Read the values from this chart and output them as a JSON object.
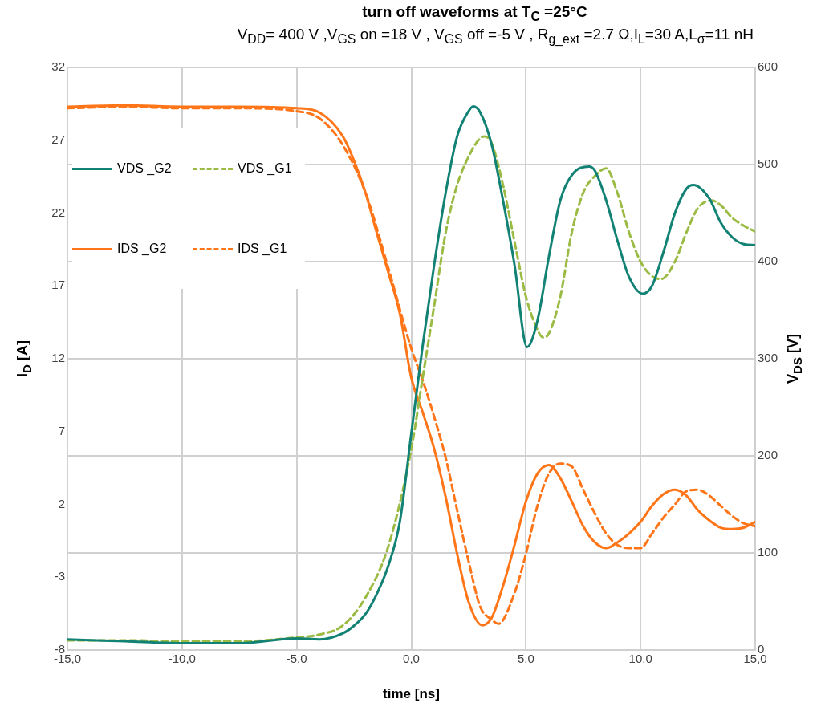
{
  "chart_data": {
    "type": "line",
    "title": "turn off waveforms at T$_{C}$ =25°C",
    "subtitle": "V$_{DD}$= 400 V ,V$_{GS}$ on =18 V , V$_{GS}$ off =-5 V , R$_{g_ext}$ =2.7 Ω,I$_{L}$=30 A,L$_{σ}$=11 nH",
    "xlabel": "time [ns]",
    "ylabel": "I$_{D}$ [A]",
    "y2label": "V$_{DS}$ [V]",
    "xlim": [
      -15,
      15
    ],
    "xticks": [
      {
        "value": -15,
        "label": "-15,0"
      },
      {
        "value": -10,
        "label": "-10,0"
      },
      {
        "value": -5,
        "label": "-5,0"
      },
      {
        "value": 0,
        "label": "0,0"
      },
      {
        "value": 5,
        "label": "5,0"
      },
      {
        "value": 10,
        "label": "10,0"
      },
      {
        "value": 15,
        "label": "15,0"
      }
    ],
    "ylim": [
      -8,
      32
    ],
    "yticks": [
      -8,
      -3,
      2,
      7,
      12,
      17,
      22,
      27,
      32
    ],
    "y2lim": [
      0,
      600
    ],
    "y2ticks": [
      0,
      100,
      200,
      300,
      400,
      500,
      600
    ],
    "grid": true,
    "legend": "top left",
    "marker": "none",
    "series": [
      {
        "name": "VDS _G2",
        "color": "#128274",
        "axis": "y2",
        "line_style": "solid",
        "x": [
          -15,
          -12.5,
          -10,
          -7.5,
          -5,
          -4,
          -3,
          -2.5,
          -2,
          -1.5,
          -1,
          -0.5,
          0,
          0.5,
          1,
          1.5,
          2,
          2.5,
          2.7,
          3,
          3.5,
          4,
          4.5,
          5.05,
          5.5,
          6,
          6.5,
          7,
          7.75,
          8,
          8.5,
          9,
          9.5,
          10.1,
          10.5,
          11,
          11.5,
          12,
          12.3,
          13,
          13.5,
          14,
          14.5,
          15
        ],
        "values": [
          11,
          9,
          7,
          7,
          12,
          11,
          17,
          25,
          37,
          58,
          87,
          132,
          223,
          314,
          397,
          471,
          529,
          555,
          560,
          554,
          521,
          463,
          397,
          312,
          339,
          405,
          463,
          489,
          498,
          494,
          463,
          421,
          384,
          367,
          375,
          410,
          450,
          475,
          479,
          465,
          440,
          425,
          418,
          417
        ]
      },
      {
        "name": "VDS _G1",
        "color": "#9bbb44",
        "axis": "y2",
        "line_style": "dashed",
        "x": [
          -15,
          -12.5,
          -10,
          -7.5,
          -5,
          -4,
          -3,
          -2,
          -1,
          0,
          0.5,
          1,
          1.5,
          2,
          2.5,
          3,
          3.2,
          3.5,
          4,
          4.5,
          5,
          5.5,
          5.75,
          6,
          6.5,
          7,
          7.5,
          8,
          8.5,
          9,
          9.5,
          10,
          10.5,
          10.9,
          11.5,
          12,
          12.5,
          13.1,
          13.5,
          14,
          14.5,
          15
        ],
        "values": [
          10,
          10,
          9,
          9,
          13,
          16,
          25,
          54,
          107,
          207,
          281,
          355,
          430,
          479,
          508,
          527,
          529,
          522,
          479,
          421,
          364,
          330,
          322,
          326,
          364,
          430,
          471,
          488,
          496,
          470,
          430,
          400,
          385,
          382,
          400,
          430,
          455,
          463,
          458,
          445,
          437,
          431
        ]
      },
      {
        "name": "IDS _G2",
        "color": "#ff7518",
        "axis": "y",
        "line_style": "solid",
        "x": [
          -15,
          -12.5,
          -10,
          -7.5,
          -5,
          -4,
          -3,
          -2.5,
          -2,
          -1.5,
          -1,
          -0.5,
          0,
          0.5,
          1,
          1.5,
          2,
          2.5,
          3.1,
          3.5,
          4,
          4.5,
          5,
          5.5,
          6,
          6.5,
          7,
          7.5,
          8,
          8.5,
          9,
          9.5,
          10,
          10.5,
          11,
          11.5,
          12,
          12.5,
          13,
          13.5,
          14,
          14.5,
          15
        ],
        "values": [
          29.3,
          29.4,
          29.3,
          29.3,
          29.2,
          28.9,
          27.3,
          25.6,
          23.4,
          20.6,
          17.9,
          15.1,
          10.7,
          8.3,
          5.8,
          2.5,
          -1.4,
          -4.7,
          -6.3,
          -5.8,
          -3.6,
          -0.8,
          2.2,
          4.1,
          4.7,
          3.8,
          2.2,
          0.5,
          -0.6,
          -1,
          -0.6,
          0,
          0.8,
          1.9,
          2.7,
          3,
          2.6,
          1.6,
          0.9,
          0.4,
          0.3,
          0.4,
          0.8
        ]
      },
      {
        "name": "IDS _G1",
        "color": "#ff7518",
        "axis": "y",
        "line_style": "dashed",
        "x": [
          -15,
          -12.5,
          -10,
          -7.5,
          -5,
          -4,
          -3,
          -2,
          -1,
          0,
          0.5,
          1,
          1.5,
          2,
          2.5,
          3,
          3.5,
          3.8,
          4.5,
          5,
          5.5,
          6,
          6.5,
          7,
          7.5,
          8,
          8.5,
          9,
          9.5,
          10,
          10.5,
          11,
          11.5,
          12,
          12.5,
          13,
          13.5,
          14,
          14.5,
          15
        ],
        "values": [
          29.2,
          29.3,
          29.2,
          29.2,
          29,
          28.5,
          26.7,
          23.4,
          18.2,
          12.7,
          10.5,
          8,
          5.2,
          1.6,
          -1.9,
          -5,
          -5.9,
          -6.2,
          -4.1,
          -1.4,
          1.9,
          4.1,
          4.8,
          4.6,
          3,
          1.4,
          0,
          -0.8,
          -1,
          -1,
          0,
          1.1,
          2,
          2.9,
          3,
          2.6,
          1.9,
          1.2,
          0.7,
          0.5
        ]
      }
    ]
  }
}
